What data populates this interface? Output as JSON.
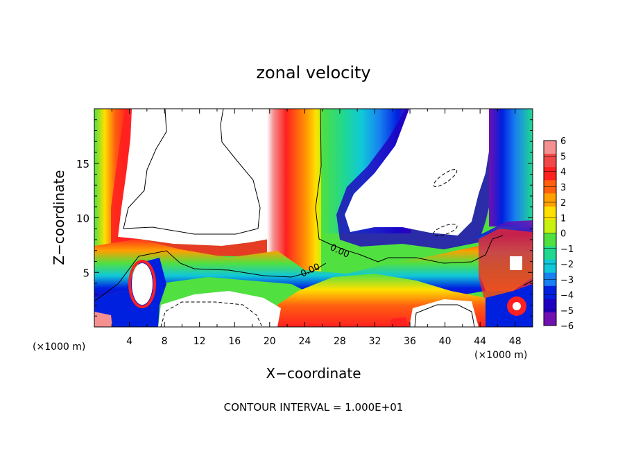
{
  "chart_data": {
    "type": "heatmap",
    "subtype": "filled contour plot",
    "title": "zonal velocity",
    "xlabel": "X−coordinate",
    "ylabel": "Z−coordinate",
    "x_multiplier_label": "(×1000 m)",
    "z_multiplier_label": "(×1000 m)",
    "x_tick_labels": [
      "4",
      "8",
      "12",
      "16",
      "20",
      "24",
      "28",
      "32",
      "36",
      "40",
      "44",
      "48"
    ],
    "y_tick_labels": [
      "5",
      "10",
      "15"
    ],
    "xlim": [
      0,
      50
    ],
    "ylim": [
      0,
      20
    ],
    "colorbar_tick_labels": [
      "6",
      "5",
      "4",
      "3",
      "2",
      "1",
      "0",
      "−1",
      "−2",
      "−3",
      "−4",
      "−5",
      "−6"
    ],
    "colorbar_range": [
      -6,
      6
    ],
    "colorbar_colors": [
      "#f49090",
      "#f04848",
      "#ff2020",
      "#ff6010",
      "#ffa000",
      "#ffe000",
      "#c8f010",
      "#50e040",
      "#20d890",
      "#10c8d8",
      "#1880f0",
      "#0020e0",
      "#2000c0",
      "#7010b0"
    ],
    "contour_labels": [
      "0.00",
      "0.00"
    ],
    "footnote": "CONTOUR INTERVAL = 1.000E+01",
    "saturation_color_high": "#ffffff",
    "saturation_color_low": "#ffffff"
  }
}
